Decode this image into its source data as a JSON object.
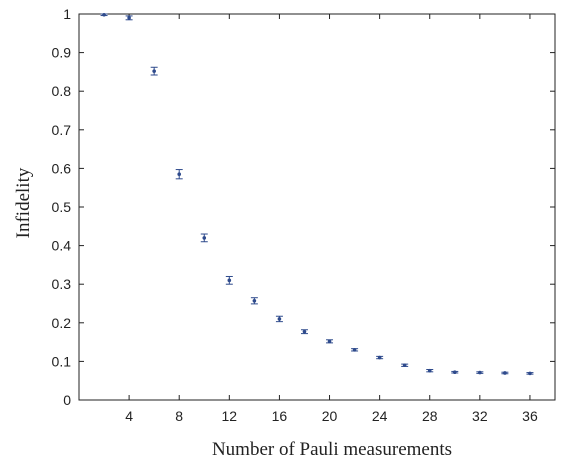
{
  "chart_data": {
    "type": "scatter",
    "xlabel": "Number of Pauli measurements",
    "ylabel": "Infidelity",
    "xlim": [
      0,
      38
    ],
    "ylim": [
      0,
      1
    ],
    "xticks": [
      4,
      8,
      12,
      16,
      20,
      24,
      28,
      32,
      36
    ],
    "yticks": [
      0,
      0.1,
      0.2,
      0.3,
      0.4,
      0.5,
      0.6,
      0.7,
      0.8,
      0.9,
      1
    ],
    "grid": false,
    "series": [
      {
        "x": [
          2,
          4,
          6,
          8,
          10,
          12,
          14,
          16,
          18,
          20,
          22,
          24,
          26,
          28,
          30,
          32,
          34,
          36
        ],
        "y": [
          0.998,
          0.99,
          0.852,
          0.585,
          0.42,
          0.31,
          0.257,
          0.21,
          0.177,
          0.152,
          0.13,
          0.11,
          0.09,
          0.076,
          0.072,
          0.071,
          0.07,
          0.069
        ],
        "error": [
          0.002,
          0.005,
          0.01,
          0.012,
          0.01,
          0.01,
          0.008,
          0.007,
          0.005,
          0.004,
          0.003,
          0.003,
          0.003,
          0.003,
          0.002,
          0.002,
          0.002,
          0.002
        ],
        "color": "#2e4a8c"
      }
    ]
  }
}
